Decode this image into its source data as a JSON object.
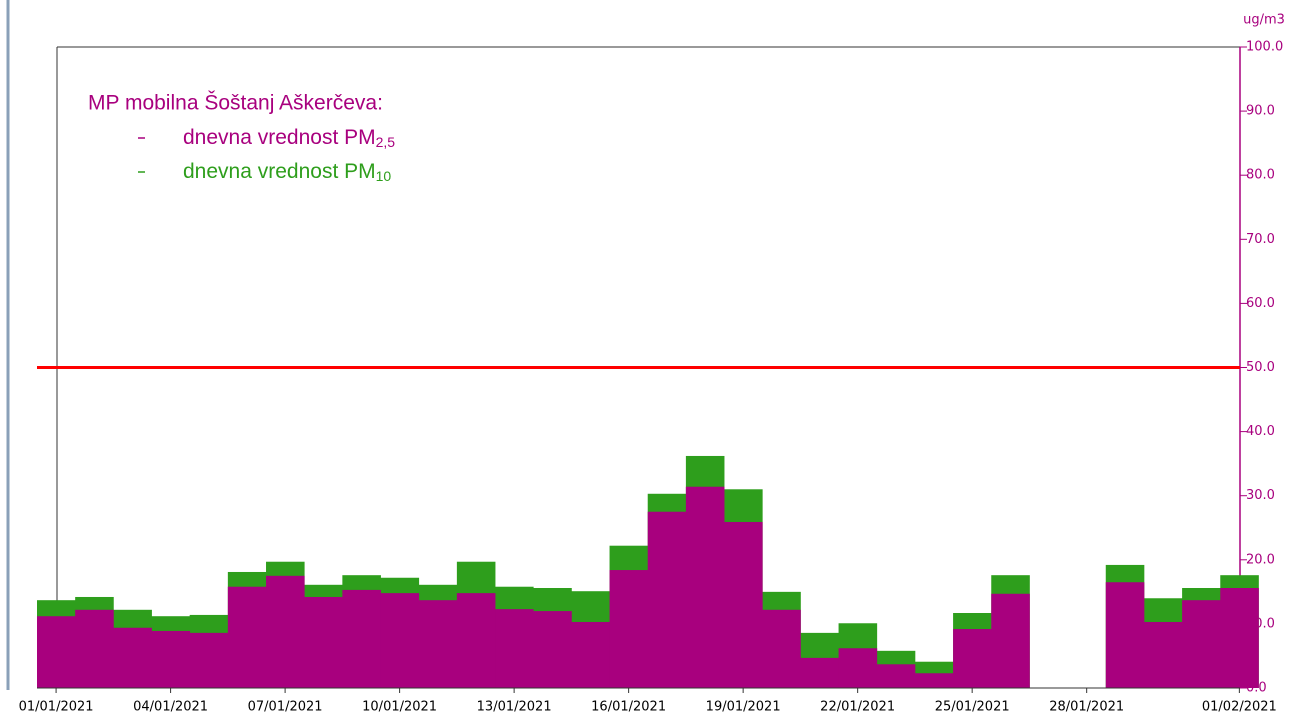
{
  "chart_data": {
    "type": "bar",
    "legend_title": "MP mobilna Šoštanj Aškerčeva:",
    "y_unit": "ug/m3",
    "categories": [
      "01/01/2021",
      null,
      null,
      "04/01/2021",
      null,
      null,
      "07/01/2021",
      null,
      null,
      "10/01/2021",
      null,
      null,
      "13/01/2021",
      null,
      null,
      "16/01/2021",
      null,
      null,
      "19/01/2021",
      null,
      null,
      "22/01/2021",
      null,
      null,
      "25/01/2021",
      null,
      null,
      "28/01/2021",
      null,
      null,
      null,
      "01/02/2021"
    ],
    "series": [
      {
        "name": "dnevna vrednost PM10",
        "color": "#2e9e1c",
        "values": [
          13.7,
          14.2,
          12.2,
          11.2,
          11.4,
          18.1,
          19.7,
          16.1,
          17.6,
          17.2,
          16.1,
          19.7,
          15.8,
          15.6,
          15.1,
          22.2,
          30.3,
          36.2,
          31.0,
          15.0,
          8.6,
          10.1,
          5.8,
          4.1,
          11.7,
          17.6,
          null,
          null,
          19.2,
          14.0,
          15.6,
          17.6
        ]
      },
      {
        "name": "dnevna vrednost PM2,5",
        "color": "#a8007e",
        "values": [
          11.2,
          12.2,
          9.4,
          8.9,
          8.6,
          15.8,
          17.5,
          14.2,
          15.3,
          14.8,
          13.7,
          14.8,
          12.3,
          12.0,
          10.3,
          18.4,
          27.5,
          31.4,
          25.9,
          12.2,
          4.7,
          6.2,
          3.7,
          2.3,
          9.2,
          14.7,
          null,
          null,
          16.5,
          10.3,
          13.7,
          15.6
        ]
      }
    ],
    "overlap": true,
    "reference_line": {
      "value": 50,
      "color": "#ff0000"
    },
    "ylim": [
      0,
      100
    ],
    "yticks": [
      {
        "value": 0,
        "label": "0.0"
      },
      {
        "value": 10,
        "label": "10.0"
      },
      {
        "value": 20,
        "label": "20.0"
      },
      {
        "value": 30,
        "label": "30.0"
      },
      {
        "value": 40,
        "label": "40.0"
      },
      {
        "value": 50,
        "label": "50.0"
      },
      {
        "value": 60,
        "label": "60.0"
      },
      {
        "value": 70,
        "label": "70.0"
      },
      {
        "value": 80,
        "label": "80.0"
      },
      {
        "value": 90,
        "label": "90.0"
      },
      {
        "value": 100,
        "label": "100.0"
      }
    ],
    "y_axis_side": "right",
    "axis_color": "#a8007e",
    "grid": true
  }
}
